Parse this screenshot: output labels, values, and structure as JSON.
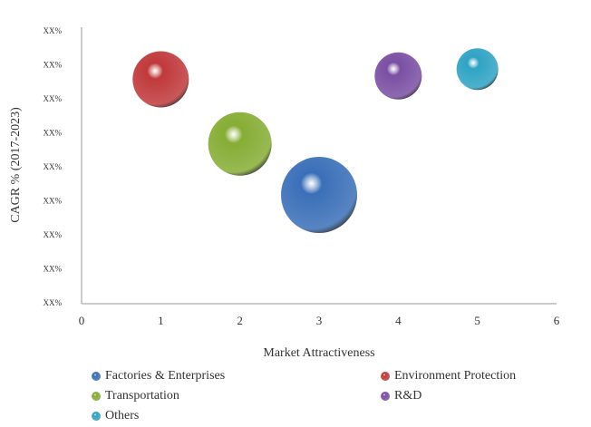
{
  "chart_data": {
    "type": "bubble",
    "x_label": "Market Attractiveness",
    "y_label": "CAGR % (2017-2023)",
    "xlim": [
      0,
      6
    ],
    "xticks": [
      0,
      1,
      2,
      3,
      4,
      5,
      6
    ],
    "ylim": [
      0,
      8
    ],
    "yticks": [
      {
        "value": 0,
        "label": "XX%"
      },
      {
        "value": 1,
        "label": "XX%"
      },
      {
        "value": 2,
        "label": "XX%"
      },
      {
        "value": 3,
        "label": "XX%"
      },
      {
        "value": 4,
        "label": "XX%"
      },
      {
        "value": 5,
        "label": "XX%"
      },
      {
        "value": 6,
        "label": "XX%"
      },
      {
        "value": 7,
        "label": "XX%"
      },
      {
        "value": 8,
        "label": "XX%"
      }
    ],
    "grid": false,
    "legend": "bottom",
    "series": [
      {
        "name": "Factories & Enterprises",
        "color": "#3a6fb8",
        "x": [
          3
        ],
        "values": [
          3.2
        ],
        "sizes": [
          42
        ]
      },
      {
        "name": "Environment Protection",
        "color": "#c0393b",
        "x": [
          1
        ],
        "values": [
          6.6
        ],
        "sizes": [
          31
        ]
      },
      {
        "name": "Transportation",
        "color": "#86ad35",
        "x": [
          2
        ],
        "values": [
          4.7
        ],
        "sizes": [
          35
        ]
      },
      {
        "name": "R&D",
        "color": "#7a4fa3",
        "x": [
          4
        ],
        "values": [
          6.7
        ],
        "sizes": [
          26
        ]
      },
      {
        "name": "Others",
        "color": "#2fa3c4",
        "x": [
          5
        ],
        "values": [
          6.9
        ],
        "sizes": [
          23
        ]
      }
    ]
  }
}
